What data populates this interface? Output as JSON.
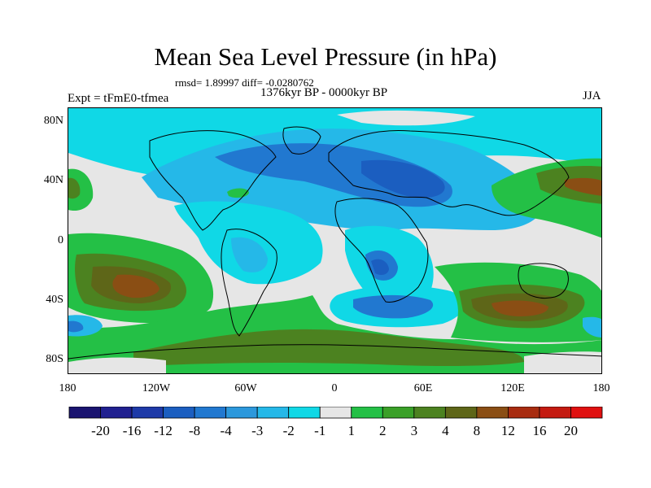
{
  "header": {
    "title": "Mean Sea Level Pressure (in hPa)",
    "stats": "rmsd= 1.89997 diff= -0.0280762",
    "period": "1376kyr BP - 0000kyr BP",
    "experiment": "Expt = tFmE0-tfmea",
    "season": "JJA"
  },
  "axes": {
    "lat_labels": [
      "80N",
      "40N",
      "0",
      "40S",
      "80S"
    ],
    "lon_labels": [
      "180",
      "120W",
      "60W",
      "0",
      "60E",
      "120E",
      "180"
    ]
  },
  "colorbar": {
    "labels": [
      "-20",
      "-16",
      "-12",
      "-8",
      "-4",
      "-3",
      "-2",
      "-1",
      "1",
      "2",
      "3",
      "4",
      "8",
      "12",
      "16",
      "20"
    ],
    "colors": [
      "#1a1470",
      "#202090",
      "#1e3aa8",
      "#1b5ec0",
      "#2178d0",
      "#2c98dc",
      "#25b8e8",
      "#10d8e6",
      "#e6e6e6",
      "#24c046",
      "#3aa028",
      "#4c8220",
      "#5e6618",
      "#8a4e14",
      "#a82c10",
      "#c41a10",
      "#e01010"
    ]
  }
}
